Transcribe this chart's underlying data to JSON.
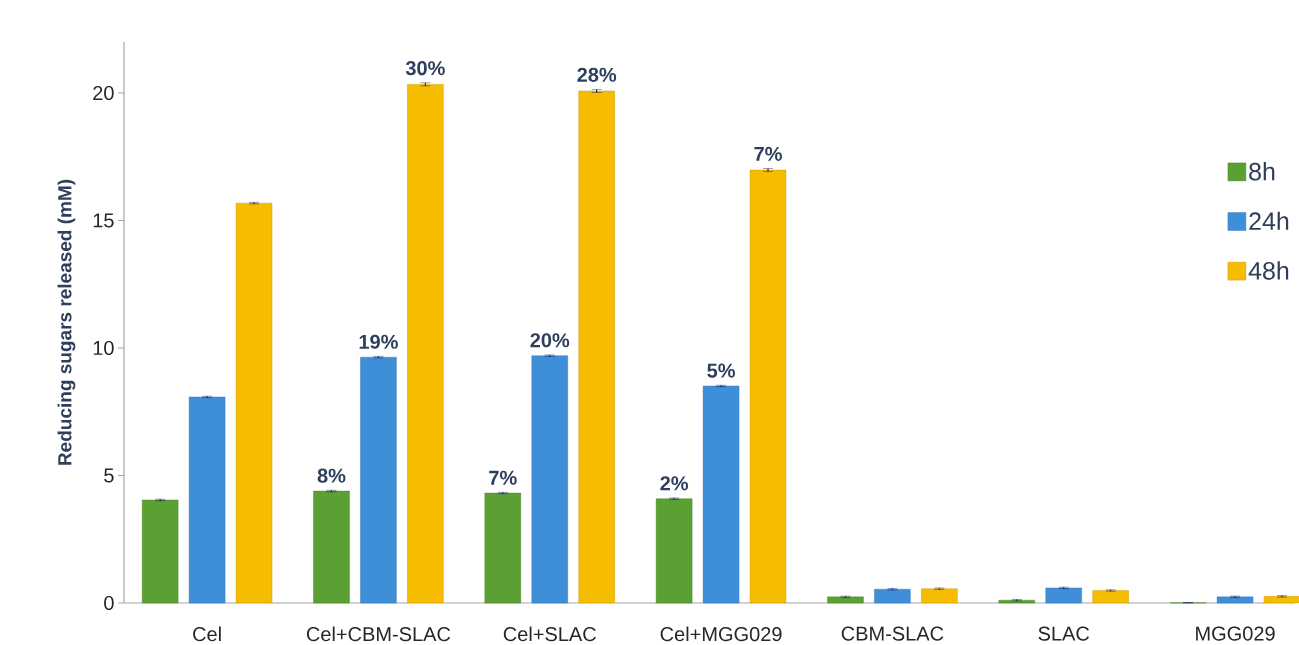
{
  "chart_data": {
    "type": "bar",
    "ylabel": "Reducing sugars released (mM)",
    "categories": [
      "Cel",
      "Cel+CBM-SLAC",
      "Cel+SLAC",
      "Cel+MGG029",
      "CBM-SLAC",
      "SLAC",
      "MGG029"
    ],
    "series": [
      {
        "name": "8h",
        "color": "#5aa032",
        "values": [
          4.04,
          4.39,
          4.31,
          4.09,
          0.24,
          0.11,
          0.01
        ],
        "errors": [
          0.03,
          0.03,
          0.03,
          0.03,
          0.03,
          0.03,
          0.01
        ]
      },
      {
        "name": "24h",
        "color": "#3f8fd8",
        "values": [
          8.08,
          9.64,
          9.7,
          8.51,
          0.54,
          0.59,
          0.24
        ],
        "errors": [
          0.03,
          0.03,
          0.03,
          0.03,
          0.03,
          0.03,
          0.03
        ]
      },
      {
        "name": "48h",
        "color": "#f5bc00",
        "values": [
          15.68,
          20.34,
          20.08,
          16.98,
          0.56,
          0.49,
          0.26
        ],
        "errors": [
          0.03,
          0.06,
          0.06,
          0.06,
          0.03,
          0.03,
          0.03
        ]
      }
    ],
    "annotations": [
      "8%",
      "7%",
      "2%",
      "19%",
      "20%",
      "5%",
      "30%",
      "28%",
      "7%"
    ],
    "ylim": [
      0,
      22
    ],
    "yticks": [
      0,
      5,
      10,
      15,
      20
    ],
    "legend": "right",
    "grid": false
  }
}
